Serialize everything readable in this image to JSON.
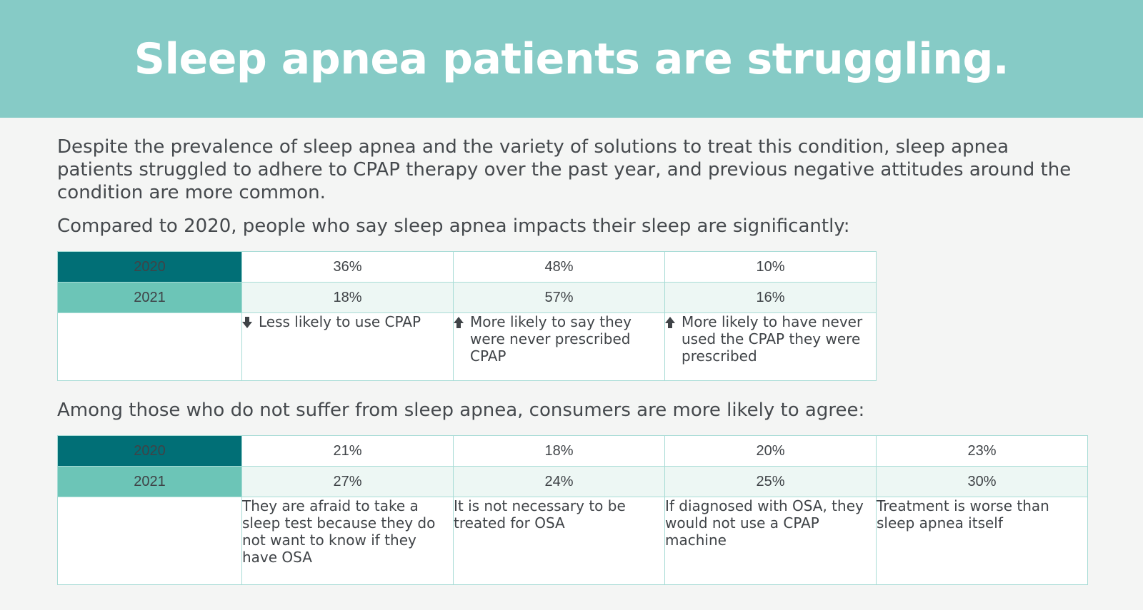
{
  "banner": {
    "title": "Sleep apnea patients are struggling."
  },
  "intro": "Despite the prevalence of sleep apnea and the variety of solutions to treat this condition, sleep apnea patients struggled to adhere to CPAP therapy over the past year, and previous negative attitudes around the condition are more common.",
  "section1": {
    "heading": "Compared to 2020, people who say sleep apnea impacts their sleep are significantly:",
    "year_labels": [
      "2020",
      "2021"
    ],
    "columns": [
      {
        "v2020": "36%",
        "v2021": "18%",
        "direction": "down",
        "direction_icon": "arrow-down-icon",
        "label": "Less likely to use CPAP"
      },
      {
        "v2020": "48%",
        "v2021": "57%",
        "direction": "up",
        "direction_icon": "arrow-up-icon",
        "label": "More likely to say they were never prescribed CPAP"
      },
      {
        "v2020": "10%",
        "v2021": "16%",
        "direction": "up",
        "direction_icon": "arrow-up-icon",
        "label": "More likely to have never used the CPAP they were prescribed"
      }
    ]
  },
  "section2": {
    "heading": "Among those who do not suffer from sleep apnea, consumers are more likely to agree:",
    "year_labels": [
      "2020",
      "2021"
    ],
    "columns": [
      {
        "v2020": "21%",
        "v2021": "27%",
        "label": "They are afraid to take a sleep test because they do not want to know if they have OSA"
      },
      {
        "v2020": "18%",
        "v2021": "24%",
        "label": "It is not necessary to be treated for OSA"
      },
      {
        "v2020": "20%",
        "v2021": "25%",
        "label": "If diagnosed with OSA, they would not use a CPAP machine"
      },
      {
        "v2020": "23%",
        "v2021": "30%",
        "label": "Treatment is worse than sleep apnea itself"
      }
    ]
  },
  "colors": {
    "banner": "#86cbc6",
    "year_2020": "#016f76",
    "year_2021": "#6cc5b7",
    "row_2021_bg": "#edf7f4",
    "border": "#a8dcd6"
  }
}
